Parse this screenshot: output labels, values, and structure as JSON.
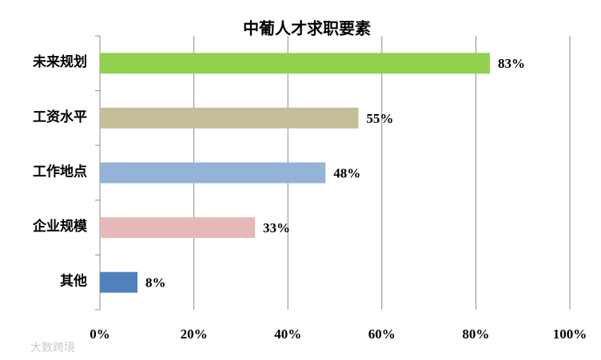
{
  "chart_data": {
    "type": "hbar",
    "title": "中葡人才求职要素",
    "categories": [
      "未来规划",
      "工资水平",
      "工作地点",
      "企业规模",
      "其他"
    ],
    "values": [
      83,
      55,
      48,
      33,
      8
    ],
    "value_labels": [
      "83%",
      "55%",
      "48%",
      "33%",
      "8%"
    ],
    "colors": [
      "#92d050",
      "#c4bd97",
      "#95b3d7",
      "#e6b9b8",
      "#4f81bd"
    ],
    "xlim": [
      0,
      100
    ],
    "xticks": [
      {
        "value": 0,
        "label": "0%"
      },
      {
        "value": 20,
        "label": "20%"
      },
      {
        "value": 40,
        "label": "40%"
      },
      {
        "value": 60,
        "label": "60%"
      },
      {
        "value": 80,
        "label": "80%"
      },
      {
        "value": 100,
        "label": "100%"
      }
    ],
    "grid": true,
    "watermark": "大数跨境"
  }
}
